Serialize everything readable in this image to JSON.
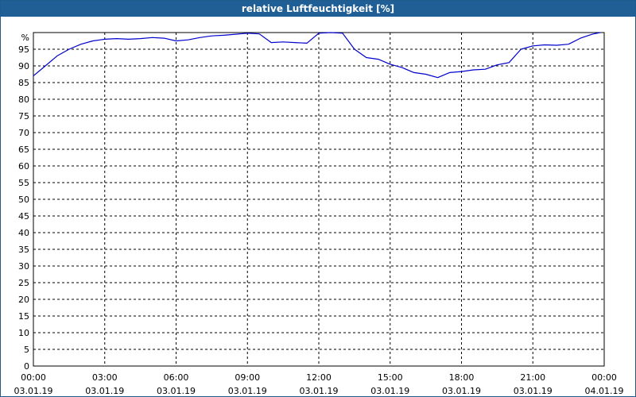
{
  "chart_data": {
    "type": "line",
    "title": "relative Luftfeuchtigkeit [%]",
    "y_unit_label": "%",
    "ylim": [
      0,
      100
    ],
    "yticks": [
      0,
      5,
      10,
      15,
      20,
      25,
      30,
      35,
      40,
      45,
      50,
      55,
      60,
      65,
      70,
      75,
      80,
      85,
      90,
      95
    ],
    "x_hours_range": [
      0,
      24
    ],
    "xticks": [
      {
        "time": "00:00",
        "date": "03.01.19"
      },
      {
        "time": "03:00",
        "date": "03.01.19"
      },
      {
        "time": "06:00",
        "date": "03.01.19"
      },
      {
        "time": "09:00",
        "date": "03.01.19"
      },
      {
        "time": "12:00",
        "date": "03.01.19"
      },
      {
        "time": "15:00",
        "date": "03.01.19"
      },
      {
        "time": "18:00",
        "date": "03.01.19"
      },
      {
        "time": "21:00",
        "date": "03.01.19"
      },
      {
        "time": "00:00",
        "date": "04.01.19"
      }
    ],
    "grid": true,
    "colors": {
      "line": "#0000cc",
      "title_bar": "#1f5f96",
      "grid": "#000000"
    },
    "series": [
      {
        "x": [
          "00:00",
          "00:30",
          "01:00",
          "01:30",
          "02:00",
          "02:30",
          "03:00",
          "03:30",
          "04:00",
          "04:30",
          "05:00",
          "05:30",
          "06:00",
          "06:30",
          "07:00",
          "07:30",
          "08:00",
          "08:30",
          "09:00",
          "09:30",
          "10:00",
          "10:30",
          "11:00",
          "11:30",
          "12:00",
          "12:30",
          "13:00",
          "13:30",
          "14:00",
          "14:30",
          "15:00",
          "15:30",
          "16:00",
          "16:30",
          "17:00",
          "17:30",
          "18:00",
          "18:30",
          "19:00",
          "19:30",
          "20:00",
          "20:30",
          "21:00",
          "21:30",
          "22:00",
          "22:30",
          "23:00",
          "23:30",
          "23:50"
        ],
        "y": [
          87,
          90,
          93,
          95,
          96.5,
          97.5,
          98,
          98.2,
          98,
          98.2,
          98.5,
          98.3,
          97.5,
          97.8,
          98.5,
          99,
          99.2,
          99.5,
          99.8,
          99.6,
          97,
          97.2,
          97,
          96.8,
          99.8,
          100,
          99.8,
          95,
          92.5,
          92,
          90.5,
          89.5,
          88,
          87.5,
          86.5,
          88,
          88.3,
          88.8,
          89,
          90.3,
          91,
          95,
          96,
          96.3,
          96.2,
          96.5,
          98.3,
          99.5,
          100
        ]
      }
    ]
  }
}
